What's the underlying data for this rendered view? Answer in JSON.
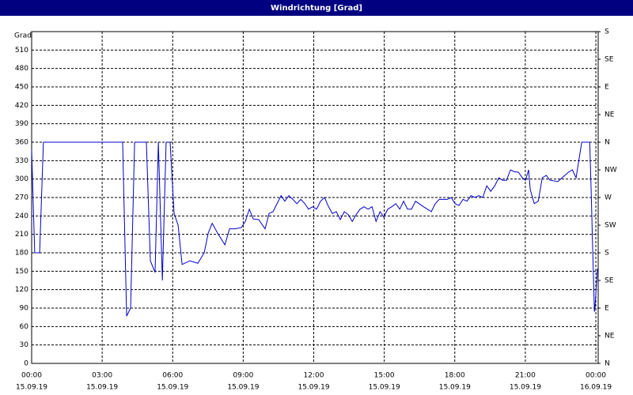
{
  "chart_data": {
    "type": "line",
    "title": "Windrichtung [Grad]",
    "y_label": "Grad",
    "color": "#0000cc",
    "grid": true,
    "x": [
      0,
      0.13,
      0.34,
      0.5,
      3.87,
      4.04,
      4.21,
      4.38,
      4.88,
      5.05,
      5.25,
      5.39,
      5.56,
      5.72,
      5.89,
      6.06,
      6.23,
      6.4,
      6.73,
      7.07,
      7.34,
      7.51,
      7.68,
      7.91,
      8.22,
      8.42,
      8.65,
      8.92,
      9.09,
      9.26,
      9.43,
      9.66,
      9.93,
      10.1,
      10.27,
      10.44,
      10.61,
      10.77,
      10.94,
      11.11,
      11.28,
      11.45,
      11.62,
      11.78,
      11.95,
      12.12,
      12.29,
      12.46,
      12.63,
      12.79,
      12.96,
      13.13,
      13.3,
      13.47,
      13.64,
      13.8,
      13.97,
      14.14,
      14.31,
      14.48,
      14.65,
      14.82,
      14.98,
      15.15,
      15.32,
      15.49,
      15.66,
      15.82,
      15.99,
      16.16,
      16.33,
      16.67,
      17.0,
      17.17,
      17.34,
      17.68,
      17.85,
      18.01,
      18.18,
      18.35,
      18.52,
      18.69,
      18.86,
      19.02,
      19.19,
      19.36,
      19.53,
      19.7,
      19.87,
      20.03,
      20.2,
      20.37,
      20.54,
      20.71,
      20.88,
      21.01,
      21.14,
      21.21,
      21.38,
      21.55,
      21.72,
      21.89,
      22.05,
      22.39,
      22.56,
      22.83,
      23.0,
      23.16,
      23.4,
      23.74,
      23.8,
      23.87,
      23.94,
      23.97,
      24.07
    ],
    "values": [
      347,
      180,
      180,
      360,
      360,
      77,
      90,
      360,
      360,
      167,
      148,
      360,
      135,
      360,
      360,
      244,
      225,
      161,
      167,
      163,
      180,
      212,
      228,
      212,
      193,
      219,
      219,
      221,
      231,
      251,
      235,
      234,
      219,
      244,
      247,
      260,
      273,
      264,
      273,
      267,
      260,
      267,
      260,
      251,
      255,
      251,
      264,
      270,
      255,
      244,
      247,
      234,
      247,
      242,
      231,
      242,
      251,
      255,
      251,
      255,
      231,
      247,
      238,
      251,
      255,
      260,
      251,
      264,
      251,
      251,
      264,
      255,
      247,
      260,
      267,
      267,
      270,
      260,
      257,
      267,
      264,
      273,
      270,
      273,
      270,
      289,
      280,
      289,
      302,
      298,
      298,
      315,
      312,
      311,
      302,
      298,
      315,
      283,
      260,
      264,
      302,
      306,
      298,
      296,
      302,
      311,
      315,
      302,
      360,
      360,
      283,
      180,
      84,
      96,
      154
    ],
    "xlim": [
      0,
      24.1
    ],
    "xticks": [
      {
        "value": 0,
        "label": "00:00"
      },
      {
        "value": 3,
        "label": "03:00"
      },
      {
        "value": 6,
        "label": "06:00"
      },
      {
        "value": 9,
        "label": "09:00"
      },
      {
        "value": 12,
        "label": "12:00"
      },
      {
        "value": 15,
        "label": "15:00"
      },
      {
        "value": 18,
        "label": "18:00"
      },
      {
        "value": 21,
        "label": "21:00"
      },
      {
        "value": 24,
        "label": "00:00"
      }
    ],
    "xtick_dates": [
      "15.09.19",
      "15.09.19",
      "15.09.19",
      "15.09.19",
      "15.09.19",
      "15.09.19",
      "15.09.19",
      "15.09.19",
      "16.09.19"
    ],
    "ylim": [
      0,
      540
    ],
    "yticks": [
      0,
      30,
      60,
      90,
      120,
      150,
      180,
      210,
      240,
      270,
      300,
      330,
      360,
      390,
      420,
      450,
      480,
      510
    ],
    "y2lim": [
      0,
      540
    ],
    "y2ticks": [
      {
        "value": 0,
        "label": "N"
      },
      {
        "value": 45,
        "label": "NE"
      },
      {
        "value": 90,
        "label": "E"
      },
      {
        "value": 135,
        "label": "SE"
      },
      {
        "value": 180,
        "label": "S"
      },
      {
        "value": 225,
        "label": "SW"
      },
      {
        "value": 270,
        "label": "W"
      },
      {
        "value": 315,
        "label": "NW"
      },
      {
        "value": 360,
        "label": "N"
      },
      {
        "value": 405,
        "label": "NE"
      },
      {
        "value": 450,
        "label": "E"
      },
      {
        "value": 495,
        "label": "SE"
      },
      {
        "value": 540,
        "label": "S"
      }
    ]
  }
}
